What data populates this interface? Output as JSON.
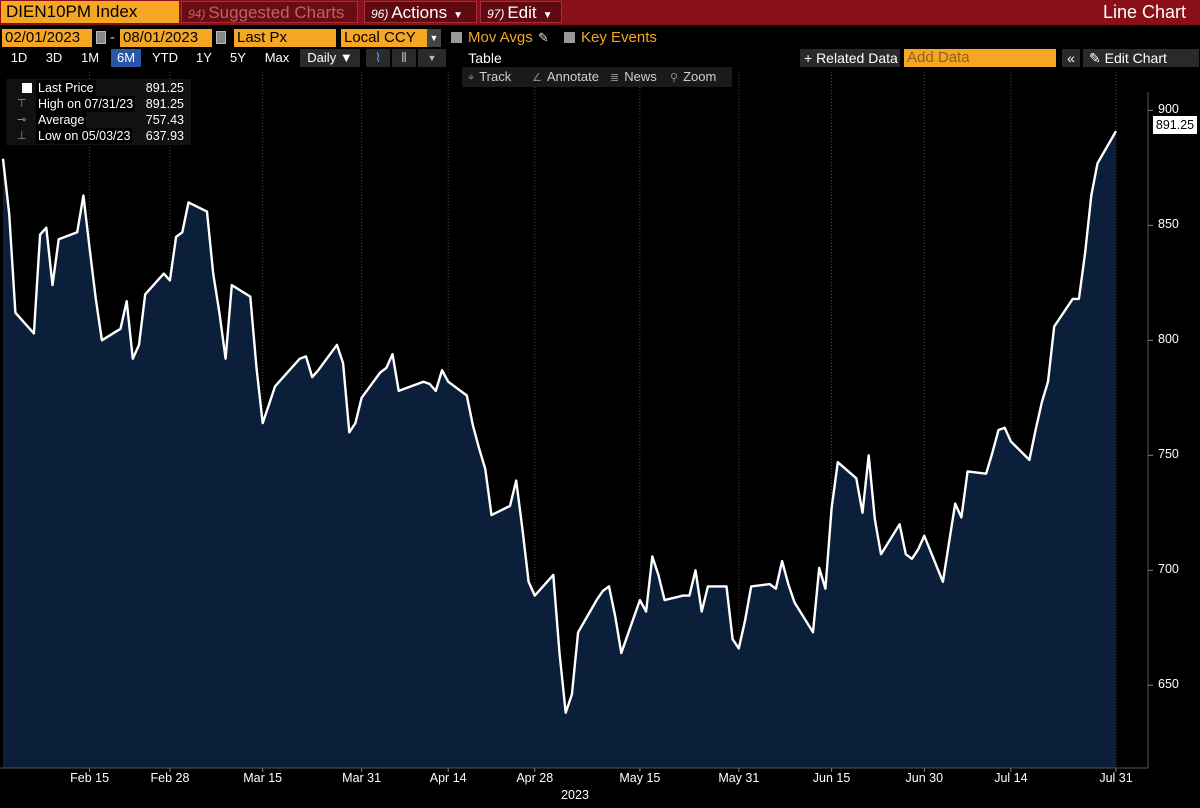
{
  "toolbar": {
    "ticker": "DIEN10PM Index",
    "suggested_num": "94)",
    "suggested_label": "Suggested Charts",
    "actions_num": "96)",
    "actions_label": "Actions",
    "edit_num": "97)",
    "edit_label": "Edit",
    "title": "Line Chart"
  },
  "inputs": {
    "start_date": "02/01/2023",
    "end_date": "08/01/2023",
    "field": "Last Px",
    "currency": "Local CCY",
    "mov_avgs": "Mov Avgs",
    "key_events": "Key Events"
  },
  "range": {
    "buttons": [
      "1D",
      "3D",
      "1M",
      "6M",
      "YTD",
      "1Y",
      "5Y",
      "Max"
    ],
    "selected": "6M",
    "period": "Daily",
    "table": "Table",
    "related": "+ Related Data",
    "add_data_placeholder": "Add Data",
    "edit_chart": "Edit Chart",
    "collapse": "«"
  },
  "tools": {
    "track": "Track",
    "annotate": "Annotate",
    "news": "News",
    "zoom": "Zoom"
  },
  "legend": {
    "last_label": "Last Price",
    "last_value": "891.25",
    "high_label": "High on 07/31/23",
    "high_value": "891.25",
    "avg_label": "Average",
    "avg_value": "757.43",
    "low_label": "Low on 05/03/23",
    "low_value": "637.93"
  },
  "chart_data": {
    "type": "area",
    "series": [
      {
        "name": "Last Price",
        "color": "#ffffff",
        "fill": "#0b1f3a",
        "x": [
          "2023-02-01",
          "2023-02-02",
          "2023-02-03",
          "2023-02-06",
          "2023-02-07",
          "2023-02-08",
          "2023-02-09",
          "2023-02-10",
          "2023-02-13",
          "2023-02-14",
          "2023-02-15",
          "2023-02-16",
          "2023-02-17",
          "2023-02-20",
          "2023-02-21",
          "2023-02-22",
          "2023-02-23",
          "2023-02-24",
          "2023-02-27",
          "2023-02-28",
          "2023-03-01",
          "2023-03-02",
          "2023-03-03",
          "2023-03-06",
          "2023-03-07",
          "2023-03-08",
          "2023-03-09",
          "2023-03-10",
          "2023-03-13",
          "2023-03-14",
          "2023-03-15",
          "2023-03-16",
          "2023-03-17",
          "2023-03-20",
          "2023-03-21",
          "2023-03-22",
          "2023-03-23",
          "2023-03-24",
          "2023-03-27",
          "2023-03-28",
          "2023-03-29",
          "2023-03-30",
          "2023-03-31",
          "2023-04-03",
          "2023-04-04",
          "2023-04-05",
          "2023-04-06",
          "2023-04-10",
          "2023-04-11",
          "2023-04-12",
          "2023-04-13",
          "2023-04-14",
          "2023-04-17",
          "2023-04-18",
          "2023-04-19",
          "2023-04-20",
          "2023-04-21",
          "2023-04-24",
          "2023-04-25",
          "2023-04-26",
          "2023-04-27",
          "2023-04-28",
          "2023-05-01",
          "2023-05-02",
          "2023-05-03",
          "2023-05-04",
          "2023-05-05",
          "2023-05-08",
          "2023-05-09",
          "2023-05-10",
          "2023-05-11",
          "2023-05-12",
          "2023-05-15",
          "2023-05-16",
          "2023-05-17",
          "2023-05-18",
          "2023-05-19",
          "2023-05-22",
          "2023-05-23",
          "2023-05-24",
          "2023-05-25",
          "2023-05-26",
          "2023-05-29",
          "2023-05-30",
          "2023-05-31",
          "2023-06-01",
          "2023-06-02",
          "2023-06-05",
          "2023-06-06",
          "2023-06-07",
          "2023-06-08",
          "2023-06-09",
          "2023-06-12",
          "2023-06-13",
          "2023-06-14",
          "2023-06-15",
          "2023-06-16",
          "2023-06-19",
          "2023-06-20",
          "2023-06-21",
          "2023-06-22",
          "2023-06-23",
          "2023-06-26",
          "2023-06-27",
          "2023-06-28",
          "2023-06-29",
          "2023-06-30",
          "2023-07-03",
          "2023-07-04",
          "2023-07-05",
          "2023-07-06",
          "2023-07-07",
          "2023-07-10",
          "2023-07-11",
          "2023-07-12",
          "2023-07-13",
          "2023-07-14",
          "2023-07-17",
          "2023-07-18",
          "2023-07-19",
          "2023-07-20",
          "2023-07-21",
          "2023-07-24",
          "2023-07-25",
          "2023-07-26",
          "2023-07-27",
          "2023-07-28",
          "2023-07-31"
        ],
        "values": [
          879,
          855,
          812,
          803,
          846,
          849,
          824,
          844,
          847,
          863,
          840,
          818,
          800,
          805,
          817,
          792,
          798,
          820,
          829,
          826,
          845,
          847,
          860,
          856,
          829,
          812,
          792,
          824,
          819,
          788,
          764,
          772,
          780,
          789,
          792,
          793,
          784,
          787,
          798,
          790,
          760,
          764,
          775,
          786,
          788,
          794,
          778,
          782,
          781,
          778,
          787,
          782,
          776,
          763,
          753,
          744,
          724,
          728,
          739,
          718,
          695,
          689,
          698,
          664,
          638,
          646,
          673,
          687,
          691,
          693,
          680,
          664,
          687,
          682,
          706,
          698,
          687,
          689,
          689,
          700,
          682,
          693,
          693,
          670,
          666,
          678,
          693,
          694,
          692,
          704,
          694,
          686,
          673,
          701,
          692,
          727,
          747,
          740,
          725,
          750,
          722,
          707,
          720,
          707,
          705,
          709,
          715,
          695,
          712,
          729,
          723,
          743,
          742,
          751,
          761,
          762,
          756,
          748,
          761,
          773,
          782,
          806,
          818,
          818,
          838,
          863,
          877,
          891
        ]
      }
    ],
    "xlabel": "",
    "ylabel": "",
    "ylim": [
      614,
      908
    ],
    "yticks": [
      650,
      700,
      750,
      800,
      850,
      900
    ],
    "xticks": [
      {
        "label": "Feb 15",
        "date": "2023-02-15"
      },
      {
        "label": "Feb 28",
        "date": "2023-02-28"
      },
      {
        "label": "Mar 15",
        "date": "2023-03-15"
      },
      {
        "label": "Mar 31",
        "date": "2023-03-31"
      },
      {
        "label": "Apr 14",
        "date": "2023-04-14"
      },
      {
        "label": "Apr 28",
        "date": "2023-04-28"
      },
      {
        "label": "May 15",
        "date": "2023-05-15"
      },
      {
        "label": "May 31",
        "date": "2023-05-31"
      },
      {
        "label": "Jun 15",
        "date": "2023-06-15"
      },
      {
        "label": "Jun 30",
        "date": "2023-06-30"
      },
      {
        "label": "Jul 14",
        "date": "2023-07-14"
      },
      {
        "label": "Jul 31",
        "date": "2023-07-31"
      }
    ],
    "year_label": "2023",
    "last_value_label": "891.25",
    "grid": "vertical dotted",
    "legend_position": "top-left"
  }
}
